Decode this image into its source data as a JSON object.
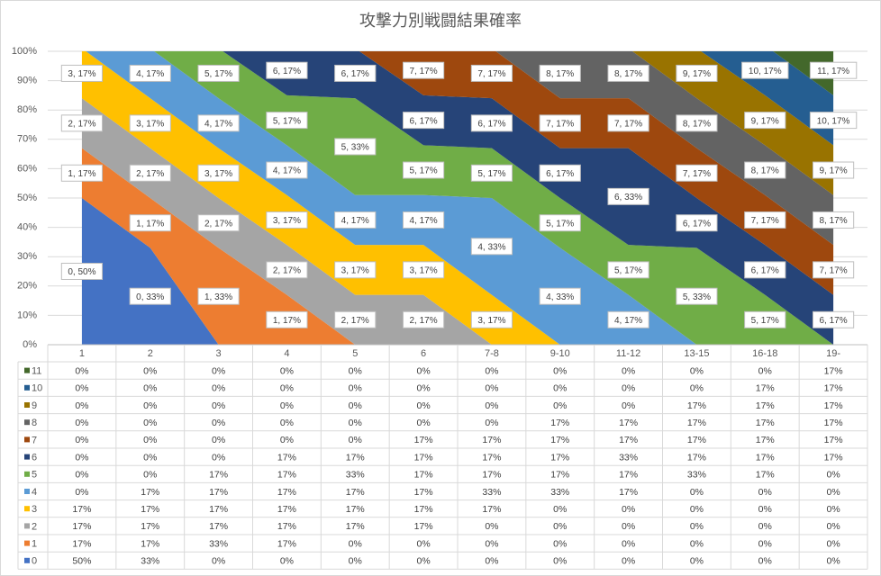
{
  "chart_data": {
    "type": "stacked_area",
    "title": "攻撃力別戦闘結果確率",
    "categories": [
      "1",
      "2",
      "3",
      "4",
      "5",
      "6",
      "7-8",
      "9-10",
      "11-12",
      "13-15",
      "16-18",
      "19-"
    ],
    "ylim": [
      0,
      100
    ],
    "yticks": [
      {
        "value": 0,
        "label": "0%"
      },
      {
        "value": 10,
        "label": "10%"
      },
      {
        "value": 20,
        "label": "20%"
      },
      {
        "value": 30,
        "label": "30%"
      },
      {
        "value": 40,
        "label": "40%"
      },
      {
        "value": 50,
        "label": "50%"
      },
      {
        "value": 60,
        "label": "60%"
      },
      {
        "value": 70,
        "label": "70%"
      },
      {
        "value": 80,
        "label": "80%"
      },
      {
        "value": 90,
        "label": "90%"
      },
      {
        "value": 100,
        "label": "100%"
      }
    ],
    "grid": true,
    "series": [
      {
        "name": "0",
        "color": "#4472c4",
        "values": [
          50,
          33,
          0,
          0,
          0,
          0,
          0,
          0,
          0,
          0,
          0,
          0
        ],
        "value_labels": [
          "0, 50%",
          "0, 33%",
          null,
          null,
          null,
          null,
          null,
          null,
          null,
          null,
          null,
          null
        ],
        "table_labels": [
          "50%",
          "33%",
          "0%",
          "0%",
          "0%",
          "0%",
          "0%",
          "0%",
          "0%",
          "0%",
          "0%",
          "0%"
        ]
      },
      {
        "name": "1",
        "color": "#ed7d31",
        "values": [
          17,
          17,
          33,
          17,
          0,
          0,
          0,
          0,
          0,
          0,
          0,
          0
        ],
        "value_labels": [
          "1, 17%",
          "1, 17%",
          "1, 33%",
          "1, 17%",
          null,
          null,
          null,
          null,
          null,
          null,
          null,
          null
        ],
        "table_labels": [
          "17%",
          "17%",
          "33%",
          "17%",
          "0%",
          "0%",
          "0%",
          "0%",
          "0%",
          "0%",
          "0%",
          "0%"
        ]
      },
      {
        "name": "2",
        "color": "#a5a5a5",
        "values": [
          17,
          17,
          17,
          17,
          17,
          17,
          0,
          0,
          0,
          0,
          0,
          0
        ],
        "value_labels": [
          "2, 17%",
          "2, 17%",
          "2, 17%",
          "2, 17%",
          "2, 17%",
          "2, 17%",
          null,
          null,
          null,
          null,
          null,
          null
        ],
        "table_labels": [
          "17%",
          "17%",
          "17%",
          "17%",
          "17%",
          "17%",
          "0%",
          "0%",
          "0%",
          "0%",
          "0%",
          "0%"
        ]
      },
      {
        "name": "3",
        "color": "#ffc000",
        "values": [
          17,
          17,
          17,
          17,
          17,
          17,
          17,
          0,
          0,
          0,
          0,
          0
        ],
        "value_labels": [
          "3, 17%",
          "3, 17%",
          "3, 17%",
          "3, 17%",
          "3, 17%",
          "3, 17%",
          "3, 17%",
          null,
          null,
          null,
          null,
          null
        ],
        "table_labels": [
          "17%",
          "17%",
          "17%",
          "17%",
          "17%",
          "17%",
          "17%",
          "0%",
          "0%",
          "0%",
          "0%",
          "0%"
        ]
      },
      {
        "name": "4",
        "color": "#5b9bd5",
        "values": [
          0,
          17,
          17,
          17,
          17,
          17,
          33,
          33,
          17,
          0,
          0,
          0
        ],
        "value_labels": [
          null,
          "4, 17%",
          "4, 17%",
          "4, 17%",
          "4, 17%",
          "4, 17%",
          "4, 33%",
          "4, 33%",
          "4, 17%",
          null,
          null,
          null
        ],
        "table_labels": [
          "0%",
          "17%",
          "17%",
          "17%",
          "17%",
          "17%",
          "33%",
          "33%",
          "17%",
          "0%",
          "0%",
          "0%"
        ]
      },
      {
        "name": "5",
        "color": "#70ad47",
        "values": [
          0,
          0,
          17,
          17,
          33,
          17,
          17,
          17,
          17,
          33,
          17,
          0
        ],
        "value_labels": [
          null,
          null,
          "5, 17%",
          "5, 17%",
          "5, 33%",
          "5, 17%",
          "5, 17%",
          "5, 17%",
          "5, 17%",
          "5, 33%",
          "5, 17%",
          null
        ],
        "table_labels": [
          "0%",
          "0%",
          "17%",
          "17%",
          "33%",
          "17%",
          "17%",
          "17%",
          "17%",
          "33%",
          "17%",
          "0%"
        ]
      },
      {
        "name": "6",
        "color": "#264478",
        "values": [
          0,
          0,
          0,
          17,
          17,
          17,
          17,
          17,
          33,
          17,
          17,
          17
        ],
        "value_labels": [
          null,
          null,
          null,
          "6, 17%",
          "6, 17%",
          "6, 17%",
          "6, 17%",
          "6, 17%",
          "6, 33%",
          "6, 17%",
          "6, 17%",
          "6, 17%"
        ],
        "table_labels": [
          "0%",
          "0%",
          "0%",
          "17%",
          "17%",
          "17%",
          "17%",
          "17%",
          "33%",
          "17%",
          "17%",
          "17%"
        ]
      },
      {
        "name": "7",
        "color": "#9e480e",
        "values": [
          0,
          0,
          0,
          0,
          0,
          17,
          17,
          17,
          17,
          17,
          17,
          17
        ],
        "value_labels": [
          null,
          null,
          null,
          null,
          null,
          "7, 17%",
          "7, 17%",
          "7, 17%",
          "7, 17%",
          "7, 17%",
          "7, 17%",
          "7, 17%"
        ],
        "table_labels": [
          "0%",
          "0%",
          "0%",
          "0%",
          "0%",
          "17%",
          "17%",
          "17%",
          "17%",
          "17%",
          "17%",
          "17%"
        ]
      },
      {
        "name": "8",
        "color": "#636363",
        "values": [
          0,
          0,
          0,
          0,
          0,
          0,
          0,
          17,
          17,
          17,
          17,
          17
        ],
        "value_labels": [
          null,
          null,
          null,
          null,
          null,
          null,
          null,
          "8, 17%",
          "8, 17%",
          "8, 17%",
          "8, 17%",
          "8, 17%"
        ],
        "table_labels": [
          "0%",
          "0%",
          "0%",
          "0%",
          "0%",
          "0%",
          "0%",
          "17%",
          "17%",
          "17%",
          "17%",
          "17%"
        ]
      },
      {
        "name": "9",
        "color": "#997300",
        "values": [
          0,
          0,
          0,
          0,
          0,
          0,
          0,
          0,
          0,
          17,
          17,
          17
        ],
        "value_labels": [
          null,
          null,
          null,
          null,
          null,
          null,
          null,
          null,
          null,
          "9, 17%",
          "9, 17%",
          "9, 17%"
        ],
        "table_labels": [
          "0%",
          "0%",
          "0%",
          "0%",
          "0%",
          "0%",
          "0%",
          "0%",
          "0%",
          "17%",
          "17%",
          "17%"
        ]
      },
      {
        "name": "10",
        "color": "#255e91",
        "values": [
          0,
          0,
          0,
          0,
          0,
          0,
          0,
          0,
          0,
          0,
          17,
          17
        ],
        "value_labels": [
          null,
          null,
          null,
          null,
          null,
          null,
          null,
          null,
          null,
          null,
          "10, 17%",
          "10, 17%"
        ],
        "table_labels": [
          "0%",
          "0%",
          "0%",
          "0%",
          "0%",
          "0%",
          "0%",
          "0%",
          "0%",
          "0%",
          "17%",
          "17%"
        ]
      },
      {
        "name": "11",
        "color": "#43682b",
        "values": [
          0,
          0,
          0,
          0,
          0,
          0,
          0,
          0,
          0,
          0,
          0,
          17
        ],
        "value_labels": [
          null,
          null,
          null,
          null,
          null,
          null,
          null,
          null,
          null,
          null,
          null,
          "11, 17%"
        ],
        "table_labels": [
          "0%",
          "0%",
          "0%",
          "0%",
          "0%",
          "0%",
          "0%",
          "0%",
          "0%",
          "0%",
          "0%",
          "17%"
        ]
      }
    ]
  }
}
